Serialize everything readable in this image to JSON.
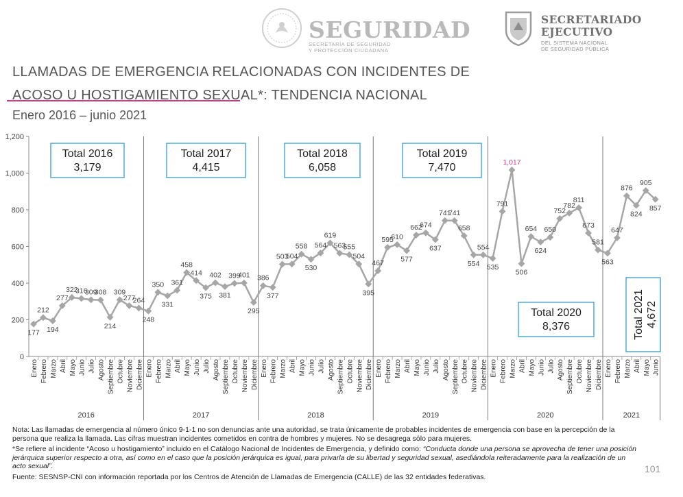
{
  "header": {
    "seguridad_title": "SEGURIDAD",
    "seguridad_subtitle": "SECRETARÍA DE SEGURIDAD\nY PROTECCIÓN CIUDADANA",
    "secretariado_title": "SECRETARIADO\nEJECUTIVO",
    "secretariado_subtitle": "DEL SISTEMA NACIONAL\nDE SEGURIDAD PÚBLICA"
  },
  "title_line1": "LLAMADAS DE EMERGENCIA RELACIONADAS CON INCIDENTES DE",
  "title_line2": "ACOSO U HOSTIGAMIENTO SEXUAL*: TENDENCIA NACIONAL",
  "subtitle": "Enero 2016 – junio 2021",
  "colors": {
    "line": "#a6a6a6",
    "highlight": "#d6338a",
    "box_border": "#2e9fd1",
    "accent": "#d6338a"
  },
  "chart_data": {
    "type": "line",
    "ylim": [
      0,
      1200
    ],
    "yticks": [
      "0",
      "200",
      "400",
      "600",
      "800",
      "1,000",
      "1,200"
    ],
    "months": [
      "Enero",
      "Febrero",
      "Marzo",
      "Abril",
      "Mayo",
      "Junio",
      "Julio",
      "Agosto",
      "Septiembre",
      "Octubre",
      "Noviembre",
      "Diciembre"
    ],
    "years": [
      "2016",
      "2017",
      "2018",
      "2019",
      "2020",
      "2021"
    ],
    "values": [
      177,
      212,
      194,
      277,
      322,
      316,
      309,
      308,
      214,
      309,
      277,
      264,
      248,
      350,
      331,
      361,
      458,
      414,
      375,
      402,
      381,
      399,
      401,
      295,
      386,
      377,
      503,
      504,
      558,
      530,
      564,
      619,
      563,
      555,
      504,
      395,
      467,
      595,
      610,
      577,
      662,
      674,
      637,
      741,
      741,
      658,
      554,
      554,
      535,
      791,
      1017,
      506,
      654,
      624,
      650,
      752,
      782,
      811,
      673,
      581,
      563,
      647,
      876,
      824,
      905,
      857
    ],
    "value_labels": [
      "177",
      "212",
      "194",
      "277",
      "322",
      "316",
      "309",
      "308",
      "214",
      "309",
      "277",
      "264",
      "248",
      "350",
      "331",
      "361",
      "458",
      "414",
      "375",
      "402",
      "381",
      "399",
      "401",
      "295",
      "386",
      "377",
      "503",
      "504",
      "558",
      "530",
      "564",
      "619",
      "563",
      "555",
      "504",
      "395",
      "467",
      "595",
      "610",
      "577",
      "662",
      "674",
      "637",
      "741",
      "741",
      "658",
      "554",
      "554",
      "535",
      "791",
      "1,017",
      "506",
      "654",
      "624",
      "650",
      "752",
      "782",
      "811",
      "673",
      "581",
      "563",
      "647",
      "876",
      "824",
      "905",
      "857"
    ],
    "highlight_index": 50,
    "totals": [
      {
        "label": "Total 2016",
        "value": "3,179"
      },
      {
        "label": "Total 2017",
        "value": "4,415"
      },
      {
        "label": "Total 2018",
        "value": "6,058"
      },
      {
        "label": "Total 2019",
        "value": "7,470"
      },
      {
        "label": "Total 2020",
        "value": "8,376"
      },
      {
        "label": "Total 2021",
        "value": "4,672"
      }
    ]
  },
  "notes": {
    "nota": "Nota: Las llamadas de emergencia al número único 9-1-1 no son denuncias ante una autoridad, se trata únicamente de probables incidentes de emergencia con base en la percepción de la persona que realiza la llamada. Las cifras muestran incidentes cometidos en contra de hombres y mujeres. No se desagrega sólo para mujeres.",
    "asterisco_intro": "*Se refiere al incidente “Acoso u hostigamiento” incluido en el Catálogo Nacional de Incidentes de Emergencia, y definido como: ",
    "asterisco_def": "“Conducta donde una persona se aprovecha de tener una posición jerárquica superior respecto a otra, así como en el caso que la posición jerárquica es igual, para privarla de su libertad y seguridad sexual, asediándola reiteradamente para la realización de un acto sexual”.",
    "fuente": "Fuente: SESNSP-CNI con información reportada por los Centros de Atención de Llamadas de Emergencia (CALLE) de las 32 entidades federativas."
  },
  "page_number": "101"
}
